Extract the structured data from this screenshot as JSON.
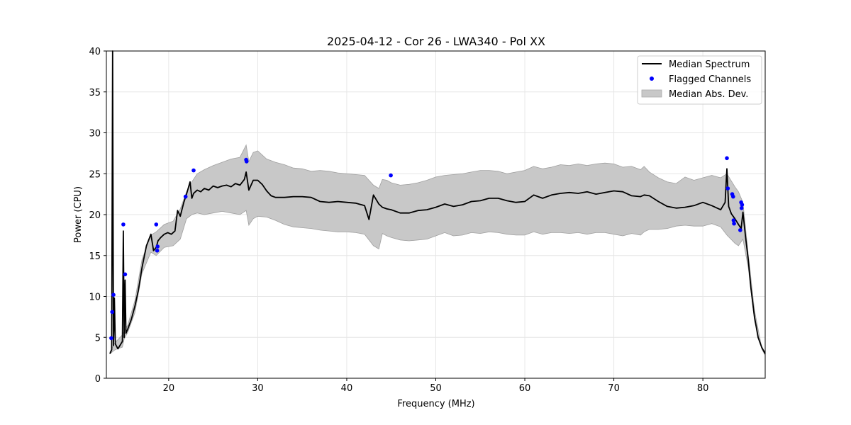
{
  "chart_data": {
    "type": "line",
    "title": "2025-04-12 - Cor 26 - LWA340 - Pol XX",
    "xlabel": "Frequency (MHz)",
    "ylabel": "Power (CPU)",
    "xlim": [
      13.0,
      87.0
    ],
    "ylim": [
      0,
      40
    ],
    "xticks": [
      20,
      30,
      40,
      50,
      60,
      70,
      80
    ],
    "yticks": [
      0,
      5,
      10,
      15,
      20,
      25,
      30,
      35,
      40
    ],
    "grid": true,
    "legend_position": "upper right",
    "series": [
      {
        "name": "Median Spectrum",
        "kind": "line",
        "color": "#000000",
        "x": [
          13.4,
          13.6,
          13.7,
          13.8,
          13.9,
          14.0,
          14.3,
          14.8,
          14.9,
          15.0,
          15.1,
          15.2,
          15.4,
          15.8,
          16.2,
          16.6,
          17.0,
          17.5,
          18.0,
          18.3,
          18.6,
          18.8,
          19.1,
          19.5,
          19.9,
          20.3,
          20.7,
          21.0,
          21.3,
          21.7,
          22.0,
          22.4,
          22.6,
          22.8,
          23.2,
          23.6,
          24.0,
          24.5,
          25.0,
          25.5,
          26.0,
          26.5,
          27.0,
          27.5,
          28.0,
          28.5,
          28.7,
          29.0,
          29.5,
          30.0,
          30.5,
          31.0,
          31.5,
          32.0,
          33.0,
          34.0,
          35.0,
          36.0,
          37.0,
          38.0,
          39.0,
          40.0,
          41.0,
          42.0,
          42.5,
          43.0,
          43.6,
          44.0,
          44.5,
          45.0,
          46.0,
          47.0,
          48.0,
          49.0,
          50.0,
          51.0,
          52.0,
          53.0,
          54.0,
          55.0,
          56.0,
          57.0,
          58.0,
          59.0,
          60.0,
          61.0,
          62.0,
          63.0,
          64.0,
          65.0,
          66.0,
          67.0,
          68.0,
          69.0,
          70.0,
          71.0,
          72.0,
          73.0,
          73.4,
          74.0,
          75.0,
          76.0,
          77.0,
          78.0,
          79.0,
          80.0,
          81.0,
          82.0,
          82.5,
          82.7,
          82.9,
          83.2,
          83.6,
          84.0,
          84.3,
          84.5,
          84.8,
          85.1,
          85.4,
          85.8,
          86.2,
          86.6,
          87.0
        ],
        "y": [
          3.0,
          3.5,
          40.0,
          4.0,
          9.8,
          4.2,
          3.6,
          4.5,
          18.0,
          5.0,
          12.0,
          5.5,
          6.0,
          7.2,
          8.8,
          10.8,
          13.5,
          16.2,
          17.6,
          15.6,
          16.0,
          16.8,
          17.2,
          17.6,
          17.8,
          17.6,
          18.0,
          20.5,
          19.8,
          21.5,
          22.5,
          24.0,
          22.0,
          22.6,
          23.0,
          22.8,
          23.2,
          23.0,
          23.5,
          23.3,
          23.5,
          23.6,
          23.4,
          23.8,
          23.6,
          24.3,
          25.2,
          23.0,
          24.2,
          24.2,
          23.7,
          22.9,
          22.3,
          22.1,
          22.1,
          22.2,
          22.2,
          22.1,
          21.6,
          21.5,
          21.6,
          21.5,
          21.4,
          21.1,
          19.4,
          22.4,
          21.3,
          20.9,
          20.7,
          20.6,
          20.2,
          20.2,
          20.5,
          20.6,
          20.9,
          21.3,
          21.0,
          21.2,
          21.6,
          21.7,
          22.0,
          22.0,
          21.7,
          21.5,
          21.6,
          22.4,
          22.0,
          22.4,
          22.6,
          22.7,
          22.6,
          22.8,
          22.5,
          22.7,
          22.9,
          22.8,
          22.3,
          22.2,
          22.4,
          22.3,
          21.6,
          21.0,
          20.8,
          20.9,
          21.1,
          21.5,
          21.1,
          20.6,
          21.5,
          25.6,
          21.0,
          20.1,
          19.5,
          18.8,
          18.3,
          20.3,
          17.2,
          14.5,
          11.0,
          7.5,
          5.0,
          3.8,
          3.0
        ]
      },
      {
        "name": "Flagged Channels",
        "kind": "scatter",
        "color": "#0000ff",
        "x": [
          13.55,
          13.65,
          13.8,
          14.9,
          15.1,
          18.6,
          18.7,
          18.75,
          21.9,
          22.8,
          28.7,
          28.75,
          44.95,
          82.7,
          82.8,
          83.3,
          83.4,
          83.45,
          83.5,
          84.2,
          84.3,
          84.35,
          84.4
        ],
        "y": [
          4.9,
          8.1,
          10.2,
          18.8,
          12.7,
          18.8,
          15.6,
          16.1,
          22.2,
          25.4,
          26.7,
          26.5,
          24.8,
          26.9,
          23.2,
          22.5,
          22.2,
          19.3,
          18.9,
          18.1,
          21.5,
          20.8,
          21.2
        ]
      },
      {
        "name": "Median Abs. Dev.",
        "kind": "band",
        "color": "#c8c8c8",
        "x": [
          13.4,
          14.0,
          14.8,
          15.0,
          15.4,
          16.2,
          17.0,
          18.0,
          18.6,
          19.5,
          20.5,
          21.3,
          22.0,
          22.6,
          23.2,
          24.0,
          25.0,
          26.0,
          27.0,
          28.0,
          28.7,
          29.0,
          29.5,
          30.0,
          31.0,
          32.0,
          33.0,
          34.0,
          35.0,
          36.0,
          37.0,
          38.0,
          39.0,
          40.0,
          41.0,
          42.0,
          43.0,
          43.6,
          44.0,
          44.5,
          45.0,
          46.0,
          47.0,
          48.0,
          49.0,
          50.0,
          51.0,
          52.0,
          53.0,
          54.0,
          55.0,
          56.0,
          57.0,
          58.0,
          59.0,
          60.0,
          61.0,
          62.0,
          63.0,
          64.0,
          65.0,
          66.0,
          67.0,
          68.0,
          69.0,
          70.0,
          71.0,
          72.0,
          73.0,
          73.4,
          74.0,
          75.0,
          76.0,
          77.0,
          78.0,
          79.0,
          80.0,
          81.0,
          82.0,
          82.7,
          83.6,
          84.0,
          84.5,
          85.1,
          85.8,
          86.6,
          87.0
        ],
        "low": [
          3.0,
          3.5,
          3.8,
          4.8,
          5.6,
          8.0,
          12.8,
          15.4,
          15.0,
          16.0,
          16.2,
          17.0,
          19.5,
          20.0,
          20.2,
          20.0,
          20.2,
          20.4,
          20.2,
          20.0,
          20.5,
          18.7,
          19.5,
          19.8,
          19.7,
          19.3,
          18.8,
          18.5,
          18.4,
          18.3,
          18.1,
          18.0,
          17.9,
          17.9,
          17.8,
          17.6,
          16.2,
          15.8,
          17.7,
          17.4,
          17.2,
          16.9,
          16.8,
          16.9,
          17.0,
          17.4,
          17.8,
          17.4,
          17.5,
          17.8,
          17.7,
          17.9,
          17.8,
          17.6,
          17.5,
          17.5,
          17.9,
          17.6,
          17.8,
          17.8,
          17.7,
          17.8,
          17.6,
          17.8,
          17.8,
          17.6,
          17.4,
          17.7,
          17.5,
          17.9,
          18.2,
          18.2,
          18.3,
          18.6,
          18.7,
          18.6,
          18.6,
          18.9,
          18.5,
          17.5,
          16.5,
          16.2,
          17.0,
          13.5,
          7.0,
          3.6,
          2.8
        ],
        "high": [
          3.2,
          4.4,
          5.3,
          5.8,
          6.5,
          9.5,
          14.5,
          17.5,
          17.9,
          18.8,
          19.2,
          20.7,
          22.8,
          24.0,
          25.0,
          25.5,
          26.0,
          26.4,
          26.8,
          27.0,
          28.5,
          26.5,
          27.6,
          27.8,
          26.8,
          26.4,
          26.1,
          25.7,
          25.6,
          25.3,
          25.4,
          25.3,
          25.1,
          25.0,
          24.9,
          24.8,
          23.6,
          23.2,
          24.3,
          24.2,
          23.9,
          23.6,
          23.7,
          23.9,
          24.2,
          24.6,
          24.8,
          24.9,
          25.0,
          25.2,
          25.4,
          25.4,
          25.3,
          25.0,
          25.2,
          25.4,
          25.9,
          25.6,
          25.8,
          26.1,
          26.0,
          26.2,
          26.0,
          26.2,
          26.3,
          26.2,
          25.8,
          25.9,
          25.5,
          25.9,
          25.2,
          24.5,
          24.0,
          23.8,
          24.6,
          24.2,
          24.5,
          24.8,
          24.5,
          25.0,
          23.4,
          22.8,
          21.5,
          15.2,
          8.3,
          3.8,
          3.2
        ]
      }
    ]
  }
}
